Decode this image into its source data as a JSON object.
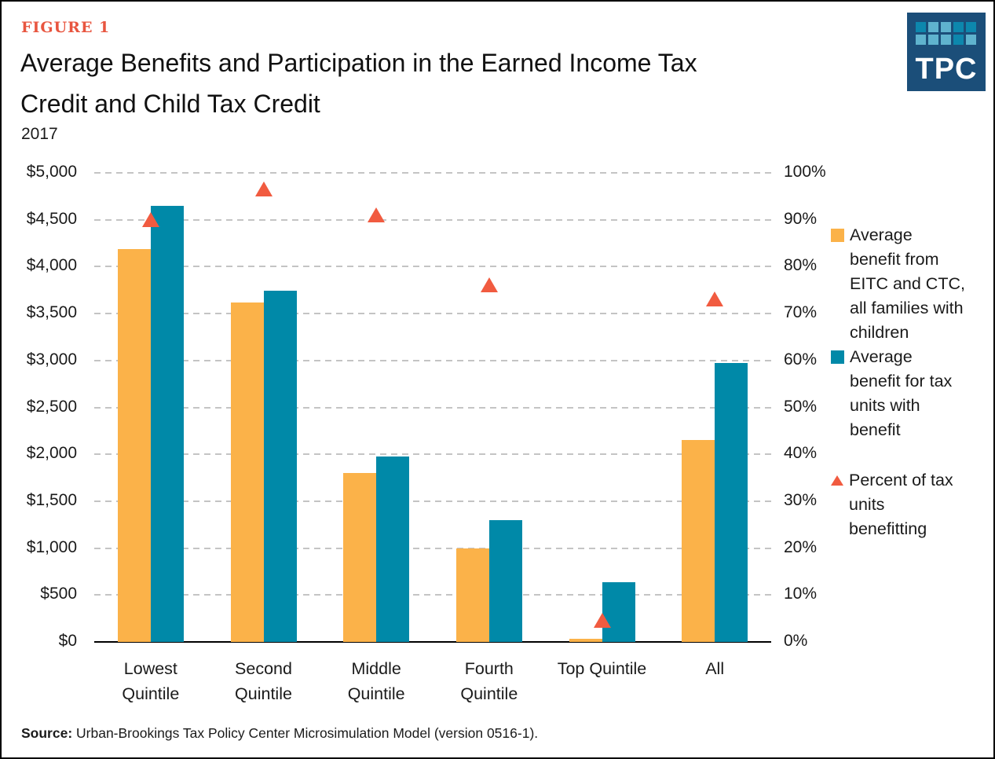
{
  "figure_label": "FIGURE 1",
  "title_lines": [
    "Average Benefits and Participation in the Earned Income Tax",
    "Credit and Child Tax Credit"
  ],
  "title_full": "Average Benefits and Participation in the Earned Income Tax Credit and Child Tax Credit",
  "subtitle": "2017",
  "logo": {
    "text": "TPC",
    "bg_color": "#1B4E79",
    "square_dark": "#0D87AD",
    "square_light": "#5FB3CE",
    "grid": [
      [
        "dark",
        "light",
        "light",
        "dark",
        "dark"
      ],
      [
        "light",
        "light",
        "light",
        "dark",
        "light"
      ]
    ]
  },
  "colors": {
    "bar_orange": "#FBB249",
    "bar_teal": "#0089A8",
    "triangle": "#F15B40",
    "gridline": "#C4C4C4",
    "axis": "#000000",
    "text": "#1A1A1A",
    "figure_label": "#E8553F"
  },
  "chart_data": {
    "type": "bar",
    "title": "Average Benefits and Participation in the Earned Income Tax Credit and Child Tax Credit",
    "subtitle": "2017",
    "grid": "horizontal-dashed",
    "legend_position": "right",
    "categories": [
      "Lowest Quintile",
      "Second Quintile",
      "Middle Quintile",
      "Fourth Quintile",
      "Top Quintile",
      "All"
    ],
    "category_label_lines": [
      [
        "Lowest",
        "Quintile"
      ],
      [
        "Second",
        "Quintile"
      ],
      [
        "Middle",
        "Quintile"
      ],
      [
        "Fourth",
        "Quintile"
      ],
      [
        "Top Quintile"
      ],
      [
        "All"
      ]
    ],
    "series": [
      {
        "name": "Average benefit from EITC and CTC, all families with children",
        "type": "bar",
        "axis": "left",
        "color": "#FBB249",
        "values": [
          4190,
          3615,
          1800,
          1000,
          30,
          2150
        ]
      },
      {
        "name": "Average benefit for tax units with benefit",
        "type": "bar",
        "axis": "left",
        "color": "#0089A8",
        "values": [
          4645,
          3740,
          1975,
          1300,
          640,
          2970
        ]
      },
      {
        "name": "Percent of tax units benefitting",
        "type": "point-triangle",
        "axis": "right",
        "color": "#F15B40",
        "values": [
          90,
          96.5,
          91,
          76,
          4.6,
          73
        ]
      }
    ],
    "left_axis": {
      "min": 0,
      "max": 5000,
      "step": 500,
      "format": "dollars",
      "ticks": [
        "$5,000",
        "$4,500",
        "$4,000",
        "$3,500",
        "$3,000",
        "$2,500",
        "$2,000",
        "$1,500",
        "$1,000",
        "$500",
        "$0"
      ]
    },
    "right_axis": {
      "min": 0,
      "max": 100,
      "step": 10,
      "format": "percent",
      "ticks": [
        "100%",
        "90%",
        "80%",
        "70%",
        "60%",
        "50%",
        "40%",
        "30%",
        "20%",
        "10%",
        "0%"
      ]
    }
  },
  "legend": {
    "items": [
      {
        "label": "Average benefit from EITC and CTC, all families with children",
        "lines": [
          "Average",
          "benefit from",
          "EITC and CTC,",
          "all families with",
          "children"
        ],
        "marker": "square",
        "color": "#FBB249"
      },
      {
        "label": "Average benefit for tax units with benefit",
        "lines": [
          "Average",
          "benefit for tax",
          "units with",
          "benefit"
        ],
        "marker": "square",
        "color": "#0089A8"
      },
      {
        "label": "Percent of tax units benefitting",
        "lines": [
          "Percent of tax",
          "units",
          "benefitting"
        ],
        "marker": "triangle",
        "color": "#F15B40"
      }
    ]
  },
  "source": {
    "label": "Source:",
    "text": " Urban-Brookings Tax Policy Center Microsimulation Model (version 0516-1)."
  }
}
